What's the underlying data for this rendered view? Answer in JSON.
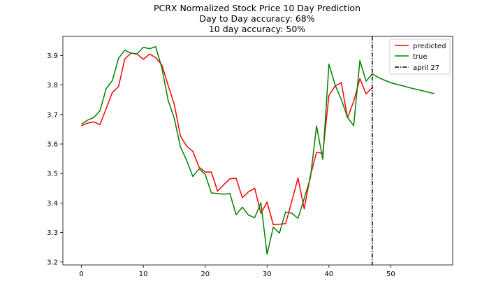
{
  "chart_data": {
    "type": "line",
    "title_lines": [
      "PCRX Normalized Stock Price 10 Day Prediction",
      "Day to Day accuracy: 68%",
      "10 day accuracy: 50%"
    ],
    "xlabel": "",
    "ylabel": "",
    "xlim": [
      -3,
      60
    ],
    "ylim": [
      3.19,
      3.965
    ],
    "x_ticks": [
      0,
      10,
      20,
      30,
      40,
      50
    ],
    "y_ticks": [
      3.2,
      3.3,
      3.4,
      3.5,
      3.6,
      3.7,
      3.8,
      3.9
    ],
    "grid": false,
    "legend_position": "top-right",
    "series": [
      {
        "name": "predicted",
        "color": "#ff0000",
        "x": [
          0,
          1,
          2,
          3,
          4,
          5,
          6,
          7,
          8,
          9,
          10,
          11,
          12,
          13,
          14,
          15,
          16,
          17,
          18,
          19,
          20,
          21,
          22,
          23,
          24,
          25,
          26,
          27,
          28,
          29,
          30,
          31,
          32,
          33,
          34,
          35,
          36,
          37,
          38,
          39,
          40,
          41,
          42,
          43,
          44,
          45,
          46,
          47
        ],
        "y": [
          3.662,
          3.671,
          3.675,
          3.666,
          3.72,
          3.775,
          3.795,
          3.888,
          3.908,
          3.905,
          3.887,
          3.905,
          3.893,
          3.868,
          3.8,
          3.735,
          3.627,
          3.593,
          3.575,
          3.522,
          3.505,
          3.505,
          3.44,
          3.462,
          3.482,
          3.484,
          3.418,
          3.438,
          3.45,
          3.365,
          3.403,
          3.327,
          3.328,
          3.33,
          3.406,
          3.485,
          3.38,
          3.493,
          3.572,
          3.568,
          3.765,
          3.797,
          3.808,
          3.689,
          3.745,
          3.822,
          3.77,
          3.791
        ]
      },
      {
        "name": "true",
        "color": "#008000",
        "x": [
          0,
          1,
          2,
          3,
          4,
          5,
          6,
          7,
          8,
          9,
          10,
          11,
          12,
          13,
          14,
          15,
          16,
          17,
          18,
          19,
          20,
          21,
          22,
          23,
          24,
          25,
          26,
          27,
          28,
          29,
          30,
          31,
          32,
          33,
          34,
          35,
          36,
          37,
          38,
          39,
          40,
          41,
          42,
          43,
          44,
          45,
          46,
          47,
          48,
          49,
          50,
          51,
          52,
          53,
          54,
          55,
          56,
          57
        ],
        "y": [
          3.667,
          3.681,
          3.69,
          3.713,
          3.788,
          3.815,
          3.891,
          3.918,
          3.908,
          3.906,
          3.928,
          3.923,
          3.93,
          3.858,
          3.749,
          3.687,
          3.59,
          3.545,
          3.49,
          3.516,
          3.497,
          3.434,
          3.432,
          3.43,
          3.432,
          3.36,
          3.386,
          3.359,
          3.35,
          3.401,
          3.226,
          3.318,
          3.298,
          3.37,
          3.365,
          3.348,
          3.415,
          3.485,
          3.661,
          3.548,
          3.871,
          3.8,
          3.751,
          3.69,
          3.662,
          3.883,
          3.813,
          3.838,
          3.825,
          3.816,
          3.808,
          3.802,
          3.797,
          3.791,
          3.786,
          3.781,
          3.776,
          3.771
        ]
      }
    ],
    "vlines": [
      {
        "name": "april 27",
        "x": 47,
        "color": "#000000",
        "style": "dash-dot"
      }
    ],
    "legend_entries": [
      "predicted",
      "true",
      "april 27"
    ]
  }
}
